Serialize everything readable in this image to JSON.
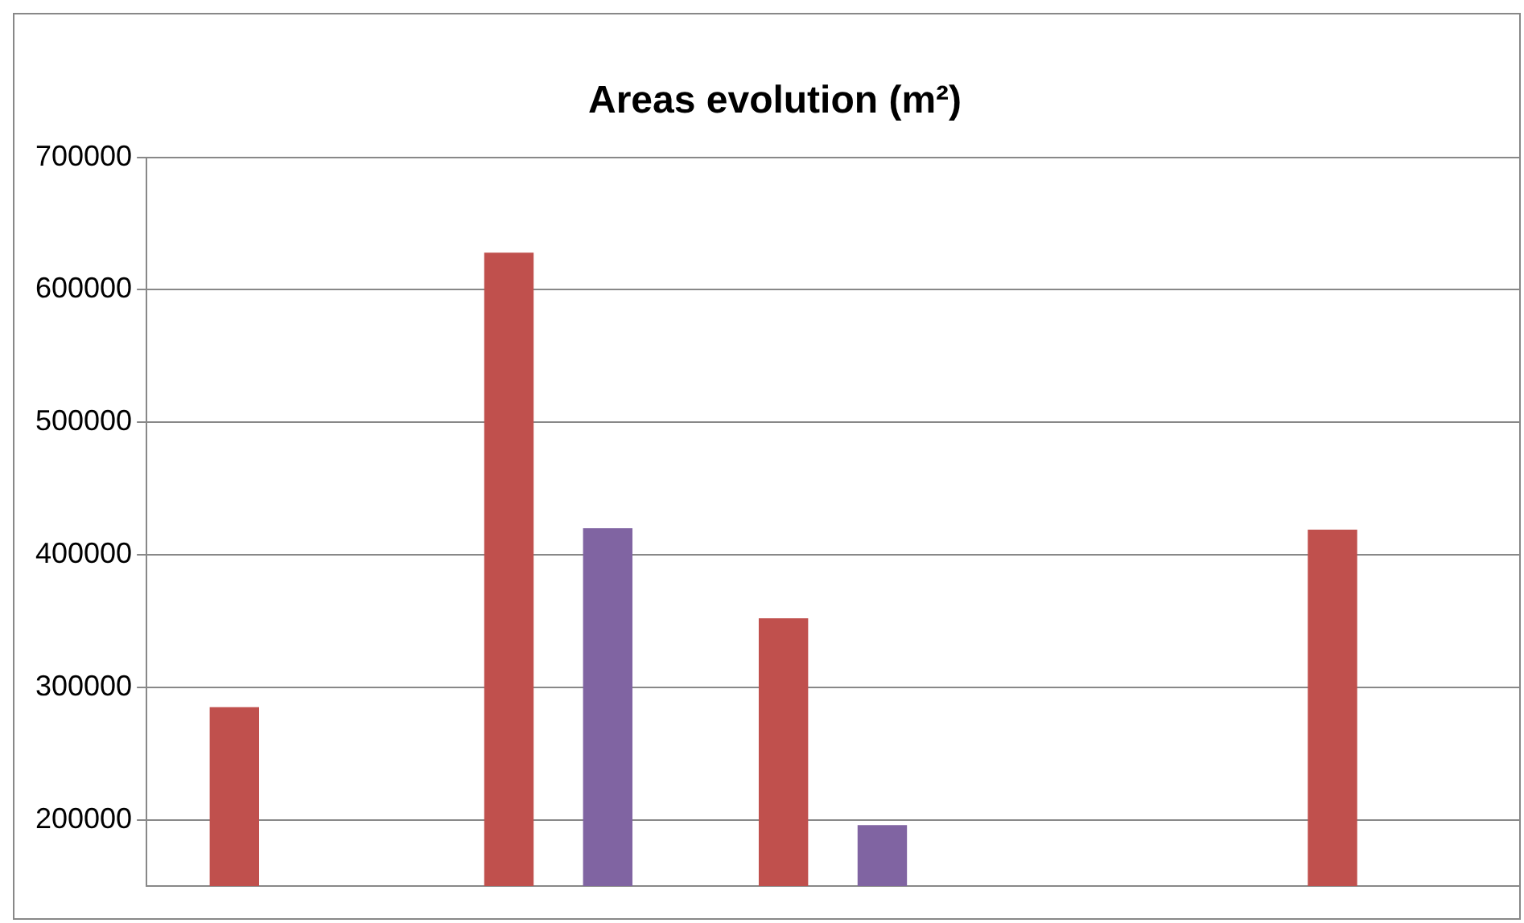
{
  "chart_data": {
    "type": "bar",
    "title": "Areas evolution (m²)",
    "categories": [
      null,
      null,
      null,
      null,
      null
    ],
    "series": [
      {
        "color": "#c0504d",
        "values": [
          285000,
          628000,
          352000,
          null,
          419000
        ]
      },
      {
        "color": "#8064a2",
        "values": [
          null,
          420000,
          196000,
          null,
          null
        ]
      }
    ],
    "ylim": [
      150000,
      700000
    ],
    "yticks": [
      200000,
      300000,
      400000,
      500000,
      600000,
      700000
    ],
    "grid": "y",
    "tick_labels": "y",
    "legend": false
  }
}
